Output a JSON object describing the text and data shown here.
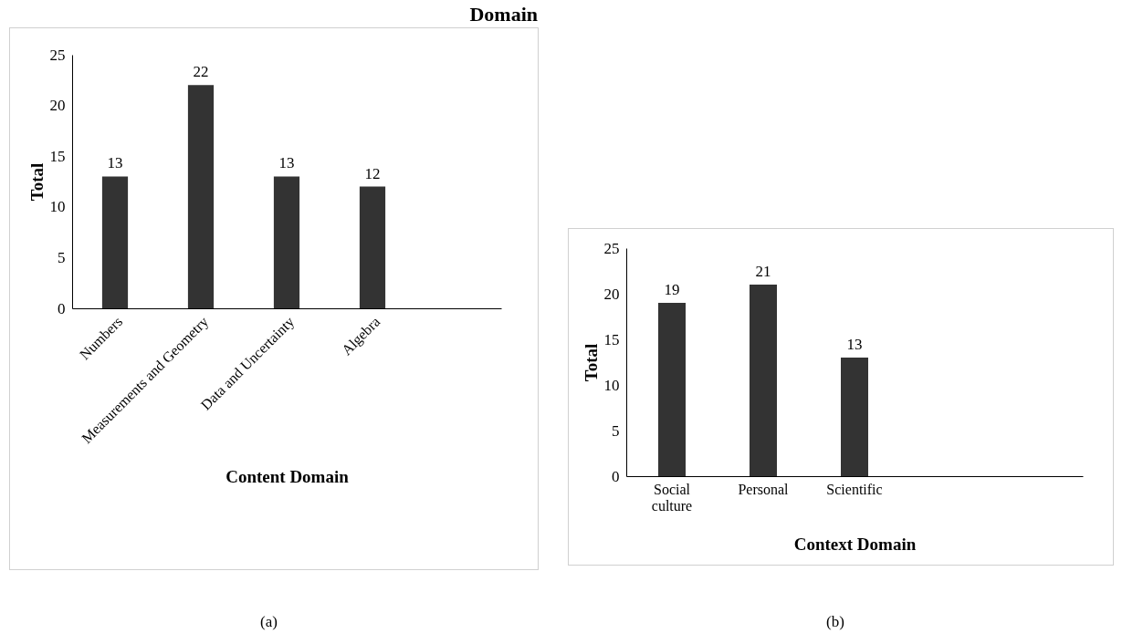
{
  "chart_data": [
    {
      "type": "bar",
      "title": "Domain",
      "xlabel": "Content Domain",
      "ylabel": "Total",
      "categories": [
        "Numbers",
        "Measurements and Geometry",
        "Data and Uncertainty",
        "Algebra",
        null
      ],
      "values": [
        13,
        22,
        13,
        12,
        null
      ],
      "color": "#333333",
      "ylim": [
        0,
        25
      ],
      "yticks": [
        0,
        5,
        10,
        15,
        20,
        25
      ],
      "data_labels": true,
      "annotations": [
        "(a)"
      ]
    },
    {
      "type": "bar",
      "xlabel": "Context Domain",
      "ylabel": "Total",
      "categories": [
        "Social culture",
        "Personal",
        "Scientific",
        null,
        null
      ],
      "values": [
        19,
        21,
        13,
        null,
        null
      ],
      "color": "#333333",
      "ylim": [
        0,
        25
      ],
      "yticks": [
        0,
        5,
        10,
        15,
        20,
        25
      ],
      "data_labels": true,
      "annotations": [
        "(b)"
      ]
    }
  ]
}
